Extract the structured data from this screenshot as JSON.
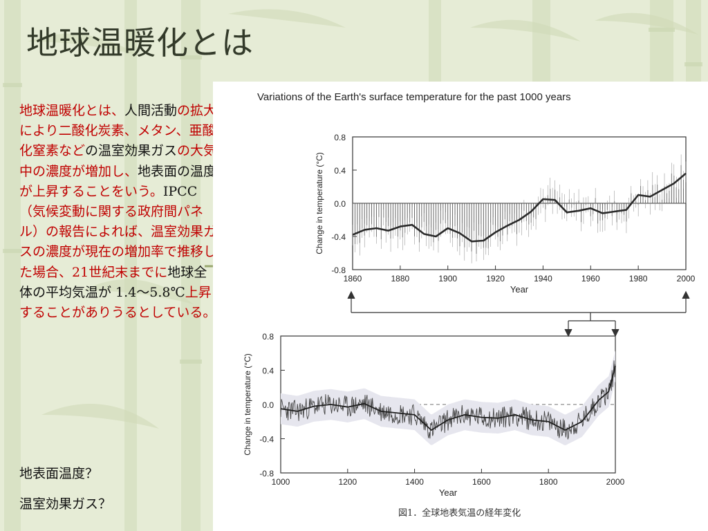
{
  "slide": {
    "title": "地球温暖化とは",
    "body_segments": [
      {
        "text": "地球温暖化とは、",
        "color": "red",
        "font": "sans"
      },
      {
        "text": "人間活動",
        "color": "black",
        "font": "sans"
      },
      {
        "text": "の拡大により二酸化炭素、メタン、亜酸化窒素など",
        "color": "red",
        "font": "sans"
      },
      {
        "text": "の温室効果ガス",
        "color": "black",
        "font": "sans"
      },
      {
        "text": "の大気中の濃度が増加し、",
        "color": "red",
        "font": "sans"
      },
      {
        "text": "地表面の温度",
        "color": "black",
        "font": "sans"
      },
      {
        "text": "が上昇することをいう。",
        "color": "red",
        "font": "sans"
      },
      {
        "text": "IPCC",
        "color": "black",
        "font": "serif"
      },
      {
        "text": "（気候変動に関する政府間パネル）の報告によれば、温室効果ガスの濃度が現在の増加率で推移した場合、",
        "color": "red",
        "font": "sans"
      },
      {
        "text": "21",
        "color": "red",
        "font": "serif"
      },
      {
        "text": "世紀末までに",
        "color": "red",
        "font": "sans"
      },
      {
        "text": "地球全体の平均気温が",
        "color": "black",
        "font": "sans"
      },
      {
        "text": " 1.4〜5.8℃",
        "color": "black",
        "font": "serif"
      },
      {
        "text": "上昇することがありうるとしている。",
        "color": "red",
        "font": "sans"
      }
    ],
    "question_1": "地表面温度？",
    "question_2": "温室効果ガス？"
  },
  "figure": {
    "top_chart_title": "Variations of the Earth's surface temperature for the past 1000 years",
    "caption": "図1．全球地表気温の経年変化"
  },
  "chart_data": [
    {
      "type": "line",
      "title": "Variations of the Earth's surface temperature for the past 1000 years",
      "xlabel": "Year",
      "ylabel": "Change in temperature (°C)",
      "xlim": [
        1860,
        2000
      ],
      "ylim": [
        -0.8,
        0.8
      ],
      "x_ticks": [
        "1860",
        "1880",
        "1900",
        "1920",
        "1940",
        "1960",
        "1980",
        "2000"
      ],
      "y_ticks": [
        "0.8",
        "0.4",
        "0.0",
        "-0.4",
        "-0.8"
      ],
      "baseline": 0,
      "series": [
        {
          "style": "smoothed",
          "x": [
            1860,
            1865,
            1870,
            1875,
            1880,
            1885,
            1890,
            1895,
            1900,
            1905,
            1910,
            1915,
            1920,
            1925,
            1930,
            1935,
            1940,
            1945,
            1950,
            1955,
            1960,
            1965,
            1970,
            1975,
            1980,
            1985,
            1990,
            1995,
            2000
          ],
          "y": [
            -0.38,
            -0.32,
            -0.3,
            -0.33,
            -0.28,
            -0.26,
            -0.37,
            -0.4,
            -0.3,
            -0.36,
            -0.46,
            -0.45,
            -0.35,
            -0.27,
            -0.2,
            -0.1,
            0.05,
            0.04,
            -0.11,
            -0.09,
            -0.06,
            -0.12,
            -0.1,
            -0.08,
            0.1,
            0.08,
            0.16,
            0.24,
            0.36
          ]
        }
      ]
    },
    {
      "type": "line",
      "xlabel": "Year",
      "ylabel": "Change in temperature (°C)",
      "xlim": [
        1000,
        2000
      ],
      "ylim": [
        -0.8,
        0.8
      ],
      "x_ticks": [
        "1000",
        "1200",
        "1400",
        "1600",
        "1800",
        "2000"
      ],
      "y_ticks": [
        "0.8",
        "0.4",
        "0.0",
        "-0.4",
        "-0.8"
      ],
      "baseline": 0,
      "series": [
        {
          "style": "smoothed",
          "x": [
            1000,
            1050,
            1100,
            1150,
            1200,
            1250,
            1300,
            1350,
            1400,
            1450,
            1500,
            1550,
            1600,
            1650,
            1700,
            1750,
            1800,
            1850,
            1900,
            1950,
            1980,
            2000
          ],
          "y": [
            -0.05,
            -0.08,
            -0.02,
            0.0,
            -0.03,
            0.01,
            -0.08,
            -0.1,
            -0.12,
            -0.3,
            -0.18,
            -0.12,
            -0.15,
            -0.16,
            -0.12,
            -0.18,
            -0.2,
            -0.3,
            -0.2,
            0.05,
            0.15,
            0.45
          ]
        }
      ]
    }
  ]
}
